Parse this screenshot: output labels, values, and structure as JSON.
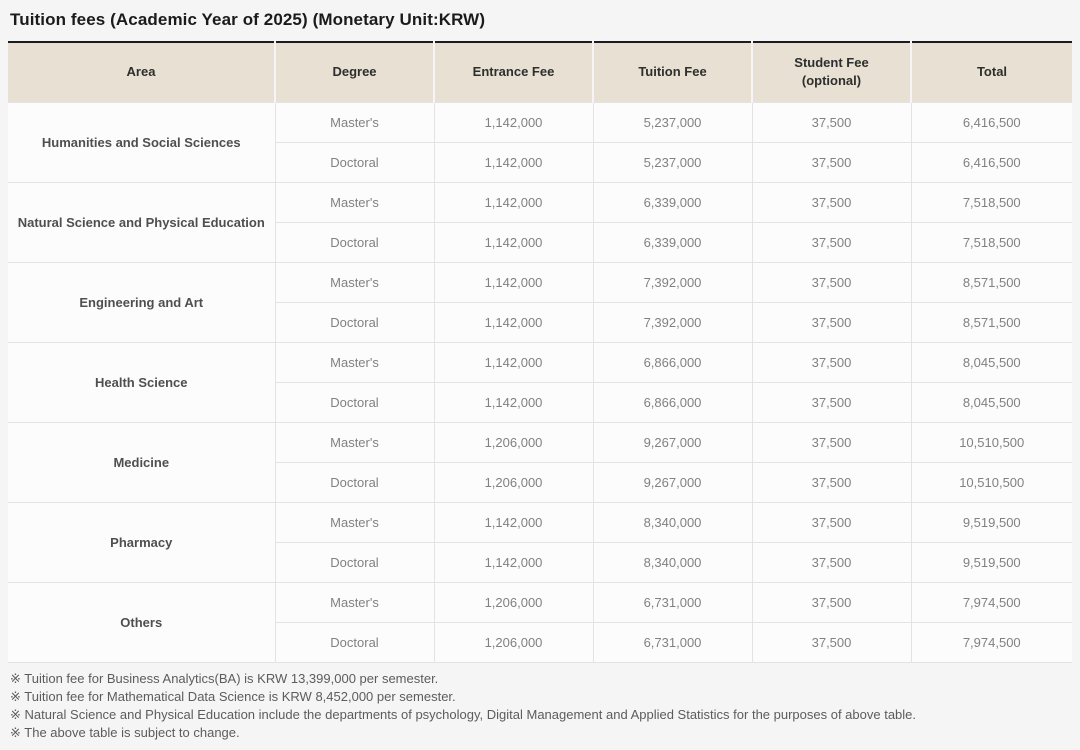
{
  "page": {
    "title": "Tuition fees (Academic Year of 2025) (Monetary Unit:KRW)"
  },
  "colors": {
    "header_bg": "#e8e1d3",
    "table_top_border": "#1c1c1c",
    "grid_line": "#e3e3e3",
    "page_bg": "#f5f5f5",
    "body_cell_bg": "#fcfcfc"
  },
  "table": {
    "columns": [
      {
        "label": "Area"
      },
      {
        "label": "Degree"
      },
      {
        "label": "Entrance Fee"
      },
      {
        "label": "Tuition Fee"
      },
      {
        "label": "Student Fee",
        "sublabel": "(optional)"
      },
      {
        "label": "Total"
      }
    ],
    "groups": [
      {
        "area": "Humanities and Social Sciences",
        "rows": [
          {
            "degree": "Master's",
            "entrance_fee": "1,142,000",
            "tuition_fee": "5,237,000",
            "student_fee": "37,500",
            "total": "6,416,500"
          },
          {
            "degree": "Doctoral",
            "entrance_fee": "1,142,000",
            "tuition_fee": "5,237,000",
            "student_fee": "37,500",
            "total": "6,416,500"
          }
        ]
      },
      {
        "area": "Natural Science and Physical Education",
        "rows": [
          {
            "degree": "Master's",
            "entrance_fee": "1,142,000",
            "tuition_fee": "6,339,000",
            "student_fee": "37,500",
            "total": "7,518,500"
          },
          {
            "degree": "Doctoral",
            "entrance_fee": "1,142,000",
            "tuition_fee": "6,339,000",
            "student_fee": "37,500",
            "total": "7,518,500"
          }
        ]
      },
      {
        "area": "Engineering and Art",
        "rows": [
          {
            "degree": "Master's",
            "entrance_fee": "1,142,000",
            "tuition_fee": "7,392,000",
            "student_fee": "37,500",
            "total": "8,571,500"
          },
          {
            "degree": "Doctoral",
            "entrance_fee": "1,142,000",
            "tuition_fee": "7,392,000",
            "student_fee": "37,500",
            "total": "8,571,500"
          }
        ]
      },
      {
        "area": "Health Science",
        "rows": [
          {
            "degree": "Master's",
            "entrance_fee": "1,142,000",
            "tuition_fee": "6,866,000",
            "student_fee": "37,500",
            "total": "8,045,500"
          },
          {
            "degree": "Doctoral",
            "entrance_fee": "1,142,000",
            "tuition_fee": "6,866,000",
            "student_fee": "37,500",
            "total": "8,045,500"
          }
        ]
      },
      {
        "area": "Medicine",
        "rows": [
          {
            "degree": "Master's",
            "entrance_fee": "1,206,000",
            "tuition_fee": "9,267,000",
            "student_fee": "37,500",
            "total": "10,510,500"
          },
          {
            "degree": "Doctoral",
            "entrance_fee": "1,206,000",
            "tuition_fee": "9,267,000",
            "student_fee": "37,500",
            "total": "10,510,500"
          }
        ]
      },
      {
        "area": "Pharmacy",
        "rows": [
          {
            "degree": "Master's",
            "entrance_fee": "1,142,000",
            "tuition_fee": "8,340,000",
            "student_fee": "37,500",
            "total": "9,519,500"
          },
          {
            "degree": "Doctoral",
            "entrance_fee": "1,142,000",
            "tuition_fee": "8,340,000",
            "student_fee": "37,500",
            "total": "9,519,500"
          }
        ]
      },
      {
        "area": "Others",
        "rows": [
          {
            "degree": "Master's",
            "entrance_fee": "1,206,000",
            "tuition_fee": "6,731,000",
            "student_fee": "37,500",
            "total": "7,974,500"
          },
          {
            "degree": "Doctoral",
            "entrance_fee": "1,206,000",
            "tuition_fee": "6,731,000",
            "student_fee": "37,500",
            "total": "7,974,500"
          }
        ]
      }
    ]
  },
  "footnotes": [
    "※ Tuition fee for Business Analytics(BA) is KRW 13,399,000 per semester.",
    "※ Tuition fee for Mathematical Data Science is KRW 8,452,000 per semester.",
    "※ Natural Science and Physical Education include the departments of psychology, Digital Management and Applied Statistics for the purposes of above table.",
    "※ The above table is subject to change."
  ]
}
